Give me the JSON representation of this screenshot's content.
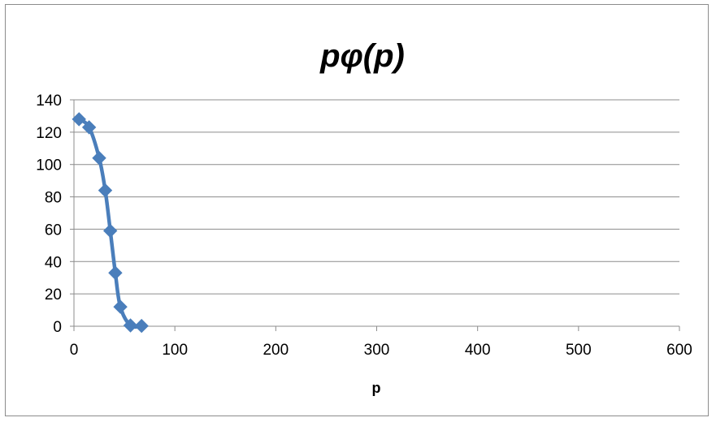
{
  "chart_data": {
    "type": "scatter",
    "title": "pφ(p)",
    "xlabel": "p",
    "ylabel": "",
    "xlim": [
      0,
      600
    ],
    "ylim": [
      0,
      140
    ],
    "x_ticks": [
      0,
      100,
      200,
      300,
      400,
      500,
      600
    ],
    "y_ticks": [
      0,
      20,
      40,
      60,
      80,
      100,
      120,
      140
    ],
    "grid": "horizontal",
    "legend": "none",
    "series": [
      {
        "color": "#4a7ebb",
        "marker": "diamond",
        "line": "smooth",
        "x": [
          5,
          15,
          25,
          31,
          36,
          41,
          46,
          56,
          67
        ],
        "y": [
          128,
          123,
          104,
          84,
          59,
          33,
          12,
          0.5,
          0.2
        ]
      }
    ]
  }
}
